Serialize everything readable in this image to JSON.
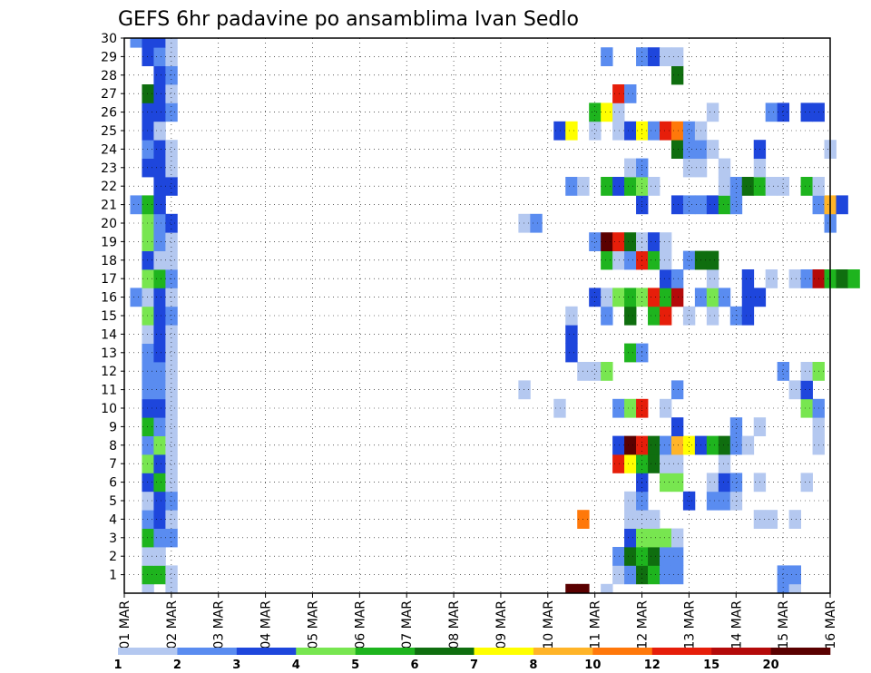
{
  "chart_data": {
    "type": "heatmap",
    "title": "GEFS 6hr padavine po ansamblima Ivan Sedlo",
    "xlabel": "",
    "ylabel": "",
    "x_ticks": [
      "01 MAR",
      "02 MAR",
      "03 MAR",
      "04 MAR",
      "05 MAR",
      "06 MAR",
      "07 MAR",
      "08 MAR",
      "09 MAR",
      "10 MAR",
      "11 MAR",
      "12 MAR",
      "13 MAR",
      "14 MAR",
      "15 MAR",
      "16 MAR"
    ],
    "xlim": [
      0,
      15
    ],
    "y_ticks": [
      "1",
      "2",
      "3",
      "4",
      "5",
      "6",
      "7",
      "8",
      "9",
      "10",
      "11",
      "12",
      "13",
      "14",
      "15",
      "16",
      "17",
      "18",
      "19",
      "20",
      "21",
      "22",
      "23",
      "24",
      "25",
      "26",
      "27",
      "28",
      "29",
      "30"
    ],
    "ylim": [
      0,
      30
    ],
    "grid": true,
    "colorbar": {
      "position": "bottom",
      "ticks": [
        "1",
        "2",
        "3",
        "4",
        "5",
        "6",
        "7",
        "8",
        "10",
        "12",
        "15",
        "20"
      ],
      "colors": [
        "#b4c8f0",
        "#5a8cf0",
        "#1e46dc",
        "#78e650",
        "#1eb41e",
        "#0f6e0f",
        "#ffff00",
        "#ffb428",
        "#ff780a",
        "#e61e0a",
        "#b40a0a",
        "#5a0000"
      ]
    },
    "cells": [
      [
        0,
        0.5,
        0
      ],
      [
        0,
        1,
        0
      ],
      [
        1,
        0.5,
        4
      ],
      [
        1,
        0.75,
        4
      ],
      [
        1,
        1,
        0
      ],
      [
        2,
        0.5,
        0
      ],
      [
        2,
        0.75,
        0
      ],
      [
        3,
        0.5,
        4
      ],
      [
        3,
        0.75,
        1
      ],
      [
        3,
        1,
        1
      ],
      [
        4,
        0.5,
        1
      ],
      [
        4,
        0.75,
        2
      ],
      [
        4,
        1,
        0
      ],
      [
        5,
        0.5,
        0
      ],
      [
        5,
        0.75,
        2
      ],
      [
        5,
        1,
        1
      ],
      [
        6,
        0.5,
        2
      ],
      [
        6,
        0.75,
        4
      ],
      [
        6,
        1,
        0
      ],
      [
        7,
        0.5,
        3
      ],
      [
        7,
        0.75,
        2
      ],
      [
        7,
        1,
        0
      ],
      [
        8,
        0.5,
        1
      ],
      [
        8,
        0.75,
        3
      ],
      [
        8,
        1,
        0
      ],
      [
        9,
        0.5,
        4
      ],
      [
        9,
        0.75,
        1
      ],
      [
        9,
        1,
        0
      ],
      [
        10,
        0.5,
        2
      ],
      [
        10,
        0.75,
        2
      ],
      [
        10,
        1,
        0
      ],
      [
        11,
        0.5,
        1
      ],
      [
        11,
        0.75,
        1
      ],
      [
        11,
        1,
        0
      ],
      [
        12,
        0.5,
        1
      ],
      [
        12,
        0.75,
        1
      ],
      [
        12,
        1,
        0
      ],
      [
        13,
        0.5,
        1
      ],
      [
        13,
        0.75,
        2
      ],
      [
        13,
        1,
        0
      ],
      [
        14,
        0.5,
        0
      ],
      [
        14,
        0.75,
        2
      ],
      [
        14,
        1,
        0
      ],
      [
        15,
        0.5,
        3
      ],
      [
        15,
        0.75,
        2
      ],
      [
        15,
        1,
        1
      ],
      [
        16,
        0.25,
        1
      ],
      [
        16,
        0.5,
        0
      ],
      [
        16,
        0.75,
        2
      ],
      [
        16,
        1,
        0
      ],
      [
        17,
        0.5,
        3
      ],
      [
        17,
        0.75,
        4
      ],
      [
        17,
        1,
        1
      ],
      [
        18,
        0.5,
        2
      ],
      [
        18,
        0.75,
        0
      ],
      [
        18,
        1,
        0
      ],
      [
        19,
        0.5,
        3
      ],
      [
        19,
        0.75,
        1
      ],
      [
        19,
        1,
        0
      ],
      [
        20,
        0.5,
        3
      ],
      [
        20,
        0.75,
        1
      ],
      [
        20,
        1,
        2
      ],
      [
        21,
        0.25,
        1
      ],
      [
        21,
        0.5,
        4
      ],
      [
        21,
        0.75,
        2
      ],
      [
        22,
        0.75,
        2
      ],
      [
        22,
        1,
        2
      ],
      [
        23,
        0.5,
        2
      ],
      [
        23,
        0.75,
        2
      ],
      [
        23,
        1,
        0
      ],
      [
        24,
        0.5,
        1
      ],
      [
        24,
        0.75,
        2
      ],
      [
        24,
        1,
        0
      ],
      [
        25,
        0.5,
        2
      ],
      [
        25,
        0.75,
        0
      ],
      [
        26,
        0.5,
        2
      ],
      [
        26,
        0.75,
        2
      ],
      [
        26,
        1,
        1
      ],
      [
        27,
        0.5,
        5
      ],
      [
        27,
        0.75,
        2
      ],
      [
        27,
        1,
        0
      ],
      [
        28,
        0.75,
        2
      ],
      [
        28,
        1,
        1
      ],
      [
        29,
        0.5,
        2
      ],
      [
        29,
        0.75,
        1
      ],
      [
        29,
        1,
        0
      ],
      [
        30,
        0.25,
        1
      ],
      [
        30,
        0.5,
        2
      ],
      [
        30,
        0.75,
        2
      ],
      [
        30,
        1,
        0
      ],
      [
        0,
        9.5,
        11
      ],
      [
        0,
        9.75,
        11
      ],
      [
        0,
        10.25,
        0
      ],
      [
        0,
        14,
        1
      ],
      [
        0,
        14.25,
        0
      ],
      [
        1,
        10.5,
        0
      ],
      [
        1,
        10.75,
        1
      ],
      [
        1,
        11,
        5
      ],
      [
        1,
        11.25,
        4
      ],
      [
        1,
        11.5,
        1
      ],
      [
        1,
        11.75,
        1
      ],
      [
        1,
        14,
        1
      ],
      [
        1,
        14.25,
        1
      ],
      [
        2,
        10.5,
        1
      ],
      [
        2,
        10.75,
        5
      ],
      [
        2,
        11,
        4
      ],
      [
        2,
        11.25,
        5
      ],
      [
        2,
        11.5,
        1
      ],
      [
        2,
        11.75,
        1
      ],
      [
        3,
        10.75,
        2
      ],
      [
        3,
        11,
        3
      ],
      [
        3,
        11.25,
        3
      ],
      [
        3,
        11.5,
        3
      ],
      [
        3,
        11.75,
        0
      ],
      [
        4,
        9.75,
        8
      ],
      [
        4,
        10.75,
        0
      ],
      [
        4,
        11,
        0
      ],
      [
        4,
        11.25,
        0
      ],
      [
        4,
        13.5,
        0
      ],
      [
        4,
        13.75,
        0
      ],
      [
        4,
        14.25,
        0
      ],
      [
        5,
        10.75,
        0
      ],
      [
        5,
        11,
        1
      ],
      [
        5,
        12,
        2
      ],
      [
        5,
        12.5,
        1
      ],
      [
        5,
        12.75,
        1
      ],
      [
        5,
        13,
        0
      ],
      [
        6,
        11,
        2
      ],
      [
        6,
        11.5,
        3
      ],
      [
        6,
        11.75,
        3
      ],
      [
        6,
        12.5,
        0
      ],
      [
        6,
        12.75,
        2
      ],
      [
        6,
        13,
        1
      ],
      [
        6,
        13.5,
        0
      ],
      [
        6,
        14.5,
        0
      ],
      [
        7,
        10.5,
        9
      ],
      [
        7,
        10.75,
        6
      ],
      [
        7,
        11,
        4
      ],
      [
        7,
        11.25,
        5
      ],
      [
        7,
        11.5,
        0
      ],
      [
        7,
        11.75,
        0
      ],
      [
        7,
        12.75,
        0
      ],
      [
        8,
        10.5,
        2
      ],
      [
        8,
        10.75,
        11
      ],
      [
        8,
        11,
        9
      ],
      [
        8,
        11.25,
        5
      ],
      [
        8,
        11.5,
        1
      ],
      [
        8,
        11.75,
        7
      ],
      [
        8,
        12,
        6
      ],
      [
        8,
        12.25,
        2
      ],
      [
        8,
        12.5,
        4
      ],
      [
        8,
        12.75,
        5
      ],
      [
        8,
        13,
        1
      ],
      [
        8,
        13.25,
        0
      ],
      [
        8,
        14.75,
        0
      ],
      [
        9,
        11.75,
        2
      ],
      [
        9,
        13,
        1
      ],
      [
        9,
        13.5,
        0
      ],
      [
        9,
        14.75,
        0
      ],
      [
        10,
        9.25,
        0
      ],
      [
        10,
        10.5,
        1
      ],
      [
        10,
        10.75,
        3
      ],
      [
        10,
        11,
        9
      ],
      [
        10,
        11.5,
        0
      ],
      [
        10,
        14.5,
        3
      ],
      [
        10,
        14.75,
        1
      ],
      [
        11,
        8.5,
        0
      ],
      [
        11,
        11.75,
        1
      ],
      [
        11,
        14.25,
        0
      ],
      [
        11,
        14.5,
        2
      ],
      [
        12,
        9.75,
        0
      ],
      [
        12,
        10,
        0
      ],
      [
        12,
        10.25,
        3
      ],
      [
        12,
        14,
        1
      ],
      [
        12,
        14.5,
        0
      ],
      [
        12,
        14.75,
        3
      ],
      [
        13,
        9.5,
        2
      ],
      [
        13,
        10.75,
        4
      ],
      [
        13,
        11,
        1
      ],
      [
        14,
        9.5,
        2
      ],
      [
        15,
        9.5,
        0
      ],
      [
        15,
        10.25,
        1
      ],
      [
        15,
        10.75,
        5
      ],
      [
        15,
        11.25,
        4
      ],
      [
        15,
        11.5,
        9
      ],
      [
        15,
        12,
        0
      ],
      [
        15,
        12.5,
        0
      ],
      [
        15,
        13,
        1
      ],
      [
        15,
        13.25,
        2
      ],
      [
        16,
        10,
        2
      ],
      [
        16,
        10.25,
        0
      ],
      [
        16,
        10.5,
        3
      ],
      [
        16,
        10.75,
        4
      ],
      [
        16,
        11,
        3
      ],
      [
        16,
        11.25,
        9
      ],
      [
        16,
        11.5,
        4
      ],
      [
        16,
        11.75,
        10
      ],
      [
        16,
        12.25,
        1
      ],
      [
        16,
        12.5,
        3
      ],
      [
        16,
        12.75,
        1
      ],
      [
        16,
        13.25,
        2
      ],
      [
        16,
        13.5,
        2
      ],
      [
        17,
        11.5,
        2
      ],
      [
        17,
        11.75,
        1
      ],
      [
        17,
        12.5,
        0
      ],
      [
        17,
        13.25,
        2
      ],
      [
        17,
        13.75,
        0
      ],
      [
        17,
        14.25,
        0
      ],
      [
        17,
        14.5,
        1
      ],
      [
        17,
        14.75,
        10
      ],
      [
        17,
        15,
        4
      ],
      [
        17,
        15.25,
        5
      ],
      [
        17,
        15.5,
        4
      ],
      [
        18,
        10.25,
        4
      ],
      [
        18,
        10.5,
        0
      ],
      [
        18,
        10.75,
        1
      ],
      [
        18,
        11,
        9
      ],
      [
        18,
        11.25,
        4
      ],
      [
        18,
        11.5,
        0
      ],
      [
        18,
        12,
        1
      ],
      [
        18,
        12.25,
        5
      ],
      [
        18,
        12.5,
        5
      ],
      [
        19,
        10,
        1
      ],
      [
        19,
        10.25,
        11
      ],
      [
        19,
        10.5,
        9
      ],
      [
        19,
        10.75,
        5
      ],
      [
        19,
        11,
        0
      ],
      [
        19,
        11.25,
        2
      ],
      [
        19,
        11.5,
        0
      ],
      [
        20,
        8.5,
        0
      ],
      [
        20,
        8.75,
        1
      ],
      [
        20,
        15,
        1
      ],
      [
        21,
        11,
        2
      ],
      [
        21,
        11.75,
        2
      ],
      [
        21,
        12,
        1
      ],
      [
        21,
        12.25,
        1
      ],
      [
        21,
        12.5,
        2
      ],
      [
        21,
        12.75,
        4
      ],
      [
        21,
        13,
        1
      ],
      [
        21,
        14.75,
        1
      ],
      [
        21,
        15,
        7
      ],
      [
        21,
        15.25,
        2
      ],
      [
        22,
        9.5,
        1
      ],
      [
        22,
        9.75,
        0
      ],
      [
        22,
        10.25,
        4
      ],
      [
        22,
        10.5,
        2
      ],
      [
        22,
        10.75,
        4
      ],
      [
        22,
        11,
        3
      ],
      [
        22,
        11.25,
        0
      ],
      [
        22,
        12.75,
        0
      ],
      [
        22,
        13,
        1
      ],
      [
        22,
        13.25,
        5
      ],
      [
        22,
        13.5,
        4
      ],
      [
        22,
        13.75,
        0
      ],
      [
        22,
        14,
        0
      ],
      [
        22,
        14.5,
        4
      ],
      [
        22,
        14.75,
        0
      ],
      [
        23,
        10.75,
        0
      ],
      [
        23,
        11,
        1
      ],
      [
        23,
        12,
        0
      ],
      [
        23,
        12.25,
        0
      ],
      [
        23,
        12.75,
        0
      ],
      [
        23,
        13.5,
        0
      ],
      [
        24,
        11.75,
        5
      ],
      [
        24,
        12,
        1
      ],
      [
        24,
        12.25,
        1
      ],
      [
        24,
        12.5,
        0
      ],
      [
        24,
        13.5,
        2
      ],
      [
        24,
        15,
        0
      ],
      [
        25,
        9.25,
        2
      ],
      [
        25,
        9.5,
        6
      ],
      [
        25,
        10,
        0
      ],
      [
        25,
        10.5,
        0
      ],
      [
        25,
        10.75,
        2
      ],
      [
        25,
        11,
        6
      ],
      [
        25,
        11.25,
        1
      ],
      [
        25,
        11.5,
        9
      ],
      [
        25,
        11.75,
        8
      ],
      [
        25,
        12,
        1
      ],
      [
        25,
        12.25,
        0
      ],
      [
        26,
        10,
        4
      ],
      [
        26,
        10.25,
        6
      ],
      [
        26,
        10.5,
        0
      ],
      [
        26,
        12.5,
        0
      ],
      [
        26,
        13.75,
        1
      ],
      [
        26,
        14,
        2
      ],
      [
        26,
        14.5,
        2
      ],
      [
        26,
        14.75,
        2
      ],
      [
        27,
        10.5,
        9
      ],
      [
        27,
        10.75,
        1
      ],
      [
        28,
        11.75,
        5
      ],
      [
        29,
        10.25,
        1
      ],
      [
        29,
        11,
        1
      ],
      [
        29,
        11.25,
        2
      ],
      [
        29,
        11.5,
        0
      ],
      [
        29,
        11.75,
        0
      ]
    ]
  }
}
